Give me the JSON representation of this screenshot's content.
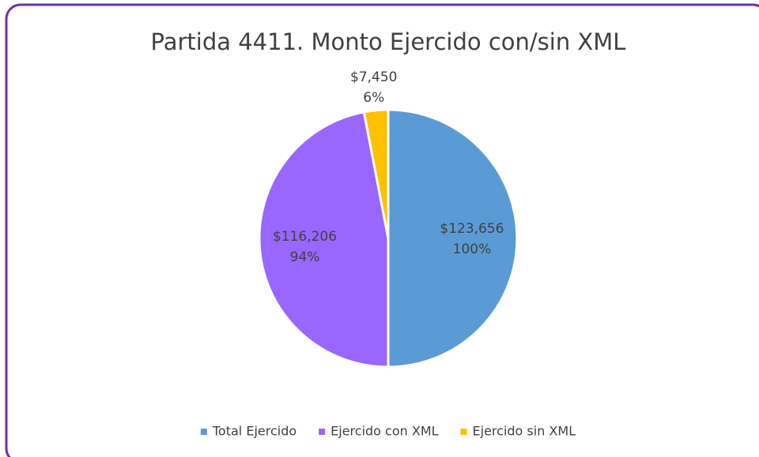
{
  "chart_data": {
    "type": "pie",
    "title": "Partida 4411. Monto Ejercido con/sin XML",
    "categories": [
      "Total Ejercido",
      "Ejercido con XML",
      "Ejercido sin XML"
    ],
    "values": [
      123656,
      116206,
      7450
    ],
    "value_labels": [
      "$123,656",
      "$116,206",
      "$7,450"
    ],
    "percents": [
      100,
      94,
      6
    ],
    "percent_labels": [
      "100%",
      "94%",
      "6%"
    ],
    "colors": [
      "#5b9bd5",
      "#9966ff",
      "#ffc000"
    ],
    "legend": "bottom"
  }
}
